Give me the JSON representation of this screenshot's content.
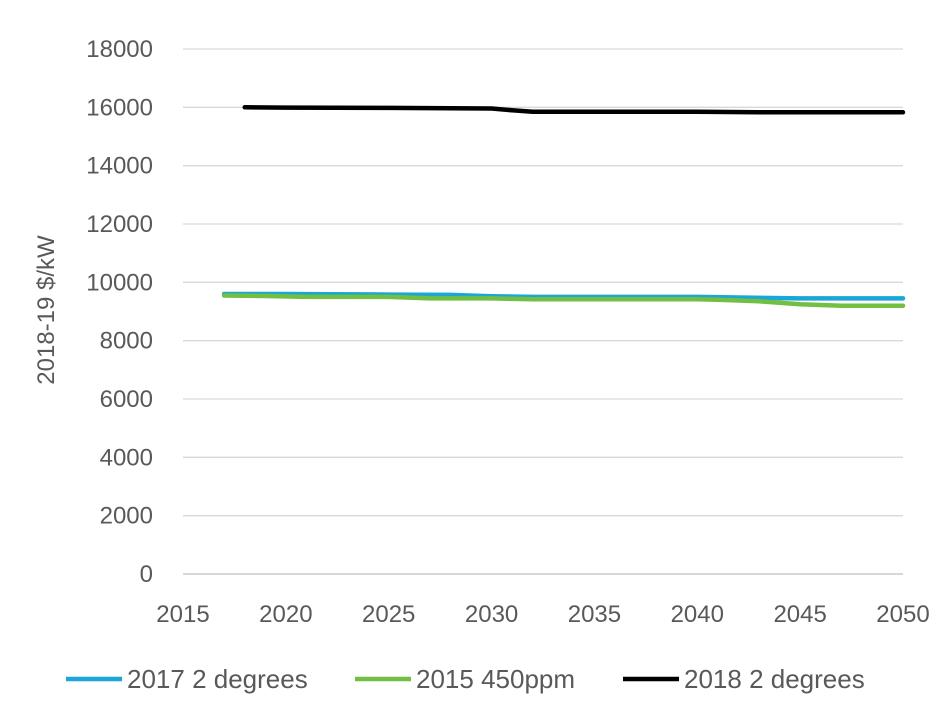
{
  "chart_data": {
    "type": "line",
    "title": "",
    "xlabel": "",
    "ylabel": "2018-19 $/kW",
    "xlim": [
      2015,
      2050
    ],
    "ylim": [
      0,
      18000
    ],
    "xticks": [
      "2015",
      "2020",
      "2025",
      "2030",
      "2035",
      "2040",
      "2045",
      "2050"
    ],
    "yticks": [
      "0",
      "2000",
      "4000",
      "6000",
      "8000",
      "10000",
      "12000",
      "14000",
      "16000",
      "18000"
    ],
    "grid": "horizontal",
    "legend_position": "bottom",
    "series": [
      {
        "name": "2017 2 degrees",
        "color": "#1aa6d6",
        "x": [
          2017,
          2020,
          2025,
          2028,
          2030,
          2032,
          2035,
          2040,
          2042,
          2045,
          2050
        ],
        "y": [
          9600,
          9600,
          9580,
          9570,
          9520,
          9500,
          9500,
          9500,
          9480,
          9450,
          9450
        ]
      },
      {
        "name": "2015 450ppm",
        "color": "#72bf44",
        "x": [
          2017,
          2019,
          2021,
          2025,
          2027,
          2030,
          2032,
          2035,
          2040,
          2041,
          2043,
          2045,
          2047,
          2050
        ],
        "y": [
          9550,
          9530,
          9500,
          9500,
          9450,
          9450,
          9420,
          9420,
          9420,
          9400,
          9350,
          9250,
          9200,
          9200
        ]
      },
      {
        "name": "2018 2 degrees",
        "color": "#000000",
        "x": [
          2018,
          2020,
          2025,
          2030,
          2031,
          2032,
          2035,
          2040,
          2043,
          2045,
          2050
        ],
        "y": [
          16000,
          15990,
          15980,
          15960,
          15900,
          15850,
          15850,
          15850,
          15830,
          15830,
          15830
        ]
      }
    ]
  }
}
